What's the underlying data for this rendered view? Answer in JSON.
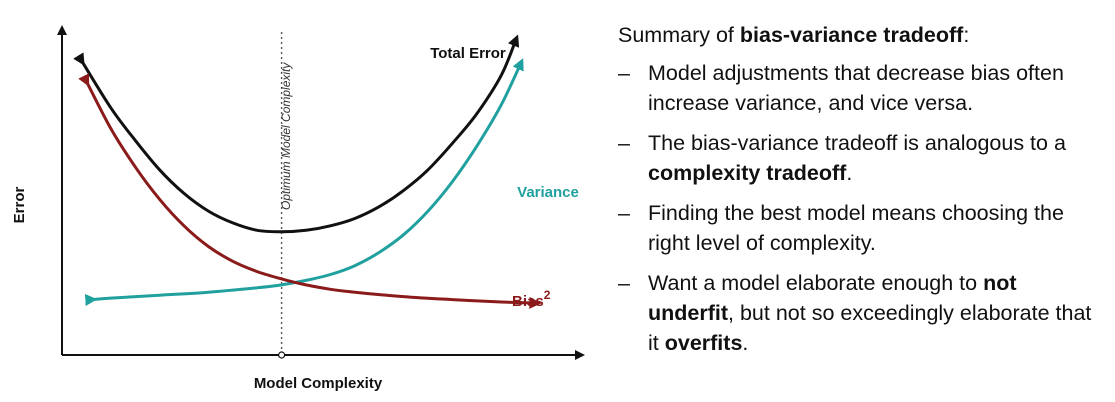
{
  "chart_data": {
    "type": "line",
    "xlabel": "Model Complexity",
    "ylabel": "Error",
    "optimum_label": "Optimum Model Complexity",
    "optimum_x": 4.5,
    "xlim": [
      0,
      10
    ],
    "ylim": [
      0,
      10
    ],
    "series": [
      {
        "name": "Total Error",
        "color": "#111111",
        "x": [
          0.4,
          1,
          1.5,
          2,
          2.5,
          3,
          3.5,
          4,
          4.5,
          5,
          5.5,
          6,
          6.5,
          7,
          7.5,
          8,
          8.5,
          9,
          9.3
        ],
        "y": [
          9.3,
          7.7,
          6.6,
          5.6,
          4.8,
          4.2,
          3.8,
          3.55,
          3.5,
          3.55,
          3.7,
          3.95,
          4.35,
          4.9,
          5.6,
          6.5,
          7.5,
          8.8,
          10.0
        ]
      },
      {
        "name": "Variance",
        "color": "#21a0a0",
        "x": [
          0.6,
          1,
          2,
          3,
          4,
          4.5,
          5,
          5.5,
          6,
          6.5,
          7,
          7.5,
          8,
          8.5,
          9,
          9.4
        ],
        "y": [
          1.2,
          1.25,
          1.35,
          1.45,
          1.6,
          1.7,
          1.85,
          2.05,
          2.35,
          2.8,
          3.4,
          4.2,
          5.2,
          6.4,
          7.8,
          9.2
        ]
      },
      {
        "name": "Bias",
        "name_superscript": "2",
        "color": "#8b1a1a",
        "x": [
          0.5,
          1,
          1.5,
          2,
          2.5,
          3,
          3.5,
          4,
          4.5,
          5,
          5.5,
          6,
          7,
          8,
          9,
          9.7
        ],
        "y": [
          8.6,
          7.0,
          5.7,
          4.6,
          3.7,
          3.0,
          2.5,
          2.15,
          1.9,
          1.7,
          1.55,
          1.45,
          1.3,
          1.2,
          1.12,
          1.08
        ]
      }
    ]
  },
  "summary": {
    "title_prefix": "Summary of ",
    "title_bold": "bias-variance tradeoff",
    "title_suffix": ":",
    "dash": "–",
    "bullets": [
      {
        "text_1": "Model adjustments that decrease bias often increase variance, and vice versa."
      },
      {
        "text_1": "The bias-variance tradeoff is analogous to a ",
        "bold_1": "complexity tradeoff",
        "text_2": "."
      },
      {
        "text_1": "Finding the best model means choosing the right level of complexity."
      },
      {
        "text_1": "Want a model elaborate enough to ",
        "bold_1": "not underfit",
        "text_2": ", but not so exceedingly elaborate that it ",
        "bold_2": "overfits",
        "text_3": "."
      }
    ]
  }
}
